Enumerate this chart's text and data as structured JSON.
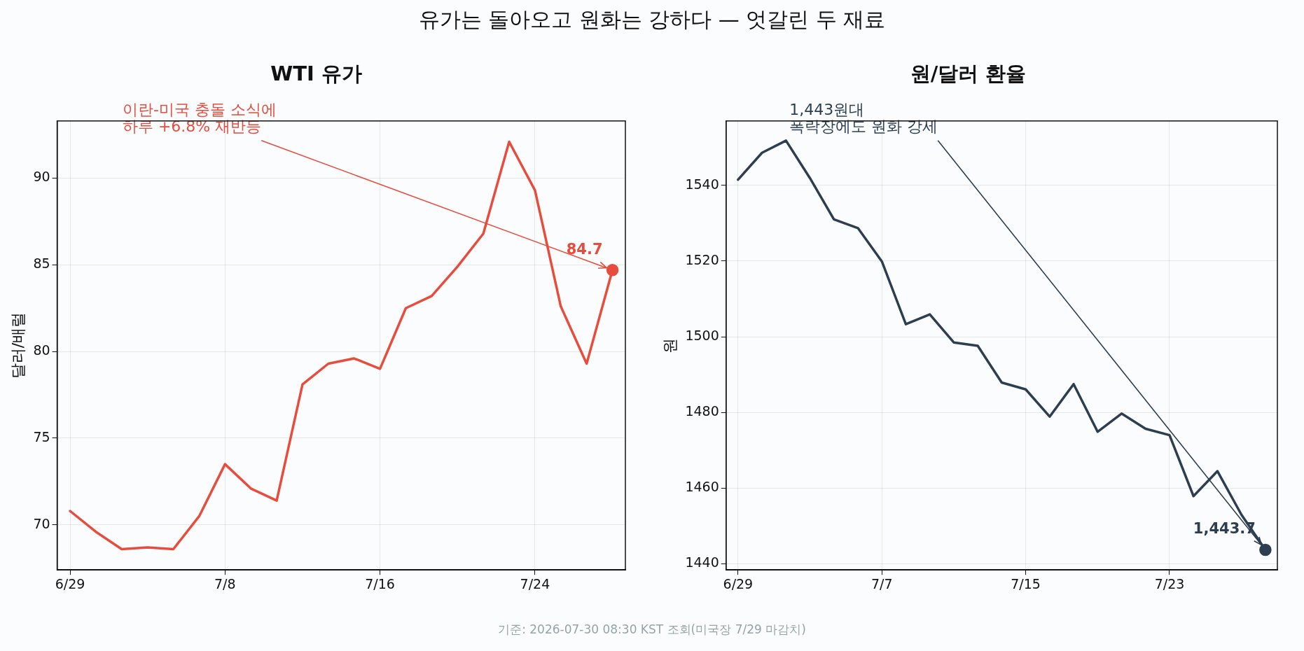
{
  "chart_data": [
    {
      "type": "line",
      "title": "WTI 유가",
      "ylabel": "달러/배럴",
      "annotations": [
        "유가는 돌아오고 원화는 강하다 — 엇갈린 두 재료",
        "이란-미국 충돌 소식에\n하루 +6.8% 재반등"
      ],
      "categories": [
        "6/29",
        null,
        null,
        null,
        null,
        null,
        "7/8",
        null,
        null,
        null,
        null,
        null,
        "7/16",
        null,
        null,
        null,
        null,
        null,
        "7/24",
        null,
        null,
        null
      ],
      "series": [
        {
          "color": "#e74c3c",
          "values": [
            70.8,
            69.6,
            68.6,
            68.7,
            68.6,
            70.5,
            73.5,
            72.1,
            71.4,
            78.1,
            79.3,
            79.6,
            79.0,
            82.5,
            83.2,
            84.9,
            86.8,
            92.1,
            89.3,
            82.6,
            79.3,
            84.7
          ],
          "value_labels": [
            null,
            null,
            null,
            null,
            null,
            null,
            null,
            null,
            null,
            null,
            null,
            null,
            null,
            null,
            null,
            null,
            null,
            null,
            null,
            null,
            null,
            "84.7"
          ]
        }
      ],
      "ylim": [
        67.4,
        93.3
      ],
      "yticks": [
        70,
        75,
        80,
        85,
        90
      ],
      "grid": true,
      "legend": false,
      "marker": "none",
      "line_style": "solid"
    },
    {
      "type": "line",
      "title": "원/달러 환율",
      "ylabel": "원",
      "annotations": [
        "기준: 2026-07-30 08:30 KST 조회(미국장 7/29 마감치)",
        "1,443원대\n폭락장에도 원화 강세"
      ],
      "categories": [
        "6/29",
        null,
        null,
        null,
        null,
        null,
        "7/7",
        null,
        null,
        null,
        null,
        null,
        "7/15",
        null,
        null,
        null,
        null,
        null,
        "7/23",
        null,
        null,
        null,
        null
      ],
      "series": [
        {
          "color": "#2c3e50",
          "values": [
            1541.5,
            1548.6,
            1551.8,
            1541.9,
            1531.0,
            1528.7,
            1519.9,
            1503.3,
            1505.9,
            1498.5,
            1497.6,
            1487.9,
            1486.1,
            1478.9,
            1487.5,
            1474.9,
            1479.7,
            1475.7,
            1474.0,
            1457.9,
            1464.5,
            1453.0,
            1443.7
          ],
          "value_labels": [
            null,
            null,
            null,
            null,
            null,
            null,
            null,
            null,
            null,
            null,
            null,
            null,
            null,
            null,
            null,
            null,
            null,
            null,
            null,
            null,
            null,
            null,
            "1,443.7"
          ]
        }
      ],
      "ylim": [
        1438.4,
        1557.0
      ],
      "yticks": [
        1440,
        1460,
        1480,
        1500,
        1520,
        1540
      ],
      "grid": true,
      "legend": false,
      "marker": "none",
      "line_style": "solid"
    }
  ]
}
